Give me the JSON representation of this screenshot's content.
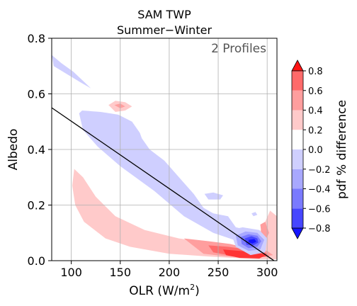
{
  "chart_data": {
    "type": "contour",
    "title": "SAM TWP",
    "subtitle": "Summer−Winter",
    "annotation": "2 Profiles",
    "xlabel_main": "OLR (W/m",
    "xlabel_sup": "2",
    "xlabel_close": ")",
    "ylabel": "Albedo",
    "xlim": [
      80,
      310
    ],
    "ylim": [
      0.0,
      0.8
    ],
    "x_ticks": [
      {
        "value": 100,
        "label": "100"
      },
      {
        "value": 150,
        "label": "150"
      },
      {
        "value": 200,
        "label": "200"
      },
      {
        "value": 250,
        "label": "250"
      },
      {
        "value": 300,
        "label": "300"
      }
    ],
    "y_ticks": [
      {
        "value": 0.0,
        "label": "0.0"
      },
      {
        "value": 0.2,
        "label": "0.2"
      },
      {
        "value": 0.4,
        "label": "0.4"
      },
      {
        "value": 0.6,
        "label": "0.6"
      },
      {
        "value": 0.8,
        "label": "0.8"
      }
    ],
    "grid": true,
    "reference_line": {
      "x": [
        80,
        307
      ],
      "y": [
        0.55,
        0.0
      ]
    },
    "colorbar": {
      "label": "pdf % difference",
      "levels": [
        -0.9,
        -0.8,
        -0.6,
        -0.4,
        -0.2,
        0.0,
        0.2,
        0.4,
        0.6,
        0.8,
        0.9
      ],
      "colors": [
        "#1414ff",
        "#4646ff",
        "#7a7aff",
        "#a8a8ff",
        "#cfcfff",
        "#ffffff",
        "#ffcaca",
        "#ff9e9e",
        "#ff6a6a",
        "#ff3434",
        "#ff1414"
      ],
      "tick_values": [
        -0.8,
        -0.6,
        -0.4,
        -0.2,
        0.0,
        0.2,
        0.4,
        0.6,
        0.8
      ],
      "tick_labels": [
        "−0.8",
        "−0.6",
        "−0.4",
        "−0.2",
        "0.0",
        "0.2",
        "0.4",
        "0.6",
        "0.8"
      ],
      "extend": "both"
    },
    "regions": [
      {
        "name": "pos-band-low",
        "sign": "positive",
        "level": 0.1,
        "color": "#ffcaca",
        "points": [
          [
            103,
            0.33
          ],
          [
            112,
            0.3
          ],
          [
            125,
            0.23
          ],
          [
            145,
            0.16
          ],
          [
            175,
            0.11
          ],
          [
            210,
            0.08
          ],
          [
            245,
            0.06
          ],
          [
            270,
            0.05
          ],
          [
            285,
            0.06
          ],
          [
            292,
            0.1
          ],
          [
            298,
            0.14
          ],
          [
            303,
            0.18
          ],
          [
            310,
            0.16
          ],
          [
            310,
            0.005
          ],
          [
            290,
            0.005
          ],
          [
            265,
            0.01
          ],
          [
            240,
            0.015
          ],
          [
            200,
            0.025
          ],
          [
            160,
            0.05
          ],
          [
            135,
            0.08
          ],
          [
            113,
            0.14
          ],
          [
            104,
            0.2
          ],
          [
            101,
            0.27
          ]
        ]
      },
      {
        "name": "pos-band-mid",
        "sign": "positive",
        "level": 0.3,
        "color": "#ff9e9e",
        "points": [
          [
            215,
            0.08
          ],
          [
            240,
            0.07
          ],
          [
            262,
            0.06
          ],
          [
            280,
            0.045
          ],
          [
            300,
            0.035
          ],
          [
            306,
            0.02
          ],
          [
            290,
            0.012
          ],
          [
            260,
            0.015
          ],
          [
            235,
            0.025
          ]
        ]
      },
      {
        "name": "pos-core-1",
        "sign": "positive",
        "level": 0.5,
        "color": "#ff6a6a",
        "points": [
          [
            240,
            0.055
          ],
          [
            260,
            0.05
          ],
          [
            280,
            0.04
          ],
          [
            298,
            0.03
          ],
          [
            302,
            0.015
          ],
          [
            285,
            0.01
          ],
          [
            260,
            0.02
          ],
          [
            245,
            0.03
          ]
        ]
      },
      {
        "name": "pos-core-2",
        "sign": "positive",
        "level": 0.7,
        "color": "#ff3434",
        "points": [
          [
            255,
            0.04
          ],
          [
            272,
            0.035
          ],
          [
            290,
            0.03
          ],
          [
            299,
            0.02
          ],
          [
            292,
            0.008
          ],
          [
            272,
            0.01
          ],
          [
            258,
            0.02
          ]
        ]
      },
      {
        "name": "pos-right-1",
        "sign": "positive",
        "level": 0.3,
        "color": "#ff9e9e",
        "points": [
          [
            293,
            0.13
          ],
          [
            298,
            0.14
          ],
          [
            302,
            0.1
          ],
          [
            299,
            0.08
          ],
          [
            294,
            0.1
          ]
        ]
      },
      {
        "name": "pos-blob-top",
        "sign": "positive",
        "level": 0.1,
        "color": "#ffcaca",
        "points": [
          [
            138,
            0.56
          ],
          [
            145,
            0.575
          ],
          [
            155,
            0.57
          ],
          [
            162,
            0.555
          ],
          [
            155,
            0.54
          ],
          [
            145,
            0.535
          ]
        ]
      },
      {
        "name": "pos-blob-top-core",
        "sign": "positive",
        "level": 0.3,
        "color": "#ff9e9e",
        "points": [
          [
            144,
            0.56
          ],
          [
            150,
            0.565
          ],
          [
            155,
            0.555
          ],
          [
            150,
            0.548
          ]
        ]
      },
      {
        "name": "neg-band-main",
        "sign": "negative",
        "level": -0.1,
        "color": "#cfcfff",
        "points": [
          [
            111,
            0.54
          ],
          [
            130,
            0.535
          ],
          [
            148,
            0.525
          ],
          [
            162,
            0.5
          ],
          [
            170,
            0.46
          ],
          [
            172,
            0.44
          ],
          [
            180,
            0.4
          ],
          [
            195,
            0.36
          ],
          [
            210,
            0.3
          ],
          [
            225,
            0.24
          ],
          [
            235,
            0.19
          ],
          [
            245,
            0.17
          ],
          [
            260,
            0.16
          ],
          [
            268,
            0.12
          ],
          [
            280,
            0.11
          ],
          [
            292,
            0.09
          ],
          [
            288,
            0.06
          ],
          [
            270,
            0.07
          ],
          [
            245,
            0.1
          ],
          [
            215,
            0.16
          ],
          [
            185,
            0.25
          ],
          [
            150,
            0.34
          ],
          [
            127,
            0.41
          ],
          [
            112,
            0.47
          ],
          [
            108,
            0.53
          ]
        ]
      },
      {
        "name": "neg-strip-top",
        "sign": "negative",
        "level": -0.1,
        "color": "#cfcfff",
        "points": [
          [
            80,
            0.74
          ],
          [
            90,
            0.71
          ],
          [
            102,
            0.68
          ],
          [
            114,
            0.64
          ],
          [
            120,
            0.62
          ],
          [
            110,
            0.64
          ],
          [
            96,
            0.67
          ],
          [
            82,
            0.7
          ]
        ]
      },
      {
        "name": "neg-blob-mid",
        "sign": "negative",
        "level": -0.1,
        "color": "#cfcfff",
        "points": [
          [
            236,
            0.24
          ],
          [
            245,
            0.245
          ],
          [
            255,
            0.235
          ],
          [
            252,
            0.22
          ],
          [
            240,
            0.22
          ]
        ]
      },
      {
        "name": "neg-right-1",
        "sign": "negative",
        "level": -0.1,
        "color": "#cfcfff",
        "points": [
          [
            262,
            0.11
          ],
          [
            275,
            0.12
          ],
          [
            292,
            0.11
          ],
          [
            300,
            0.08
          ],
          [
            298,
            0.03
          ],
          [
            283,
            0.02
          ],
          [
            268,
            0.05
          ]
        ]
      },
      {
        "name": "neg-right-2",
        "sign": "negative",
        "level": -0.3,
        "color": "#a8a8ff",
        "points": [
          [
            268,
            0.09
          ],
          [
            278,
            0.105
          ],
          [
            290,
            0.1
          ],
          [
            297,
            0.075
          ],
          [
            293,
            0.04
          ],
          [
            281,
            0.035
          ],
          [
            270,
            0.055
          ]
        ]
      },
      {
        "name": "neg-right-3",
        "sign": "negative",
        "level": -0.5,
        "color": "#7a7aff",
        "points": [
          [
            273,
            0.085
          ],
          [
            281,
            0.095
          ],
          [
            290,
            0.09
          ],
          [
            294,
            0.07
          ],
          [
            290,
            0.05
          ],
          [
            281,
            0.045
          ],
          [
            274,
            0.06
          ]
        ]
      },
      {
        "name": "neg-right-4",
        "sign": "negative",
        "level": -0.7,
        "color": "#4646ff",
        "points": [
          [
            277,
            0.08
          ],
          [
            284,
            0.088
          ],
          [
            290,
            0.08
          ],
          [
            291,
            0.065
          ],
          [
            286,
            0.055
          ],
          [
            279,
            0.057
          ]
        ]
      },
      {
        "name": "neg-right-5",
        "sign": "negative",
        "level": -0.85,
        "color": "#1414ff",
        "points": [
          [
            281,
            0.075
          ],
          [
            287,
            0.078
          ],
          [
            289,
            0.068
          ],
          [
            285,
            0.062
          ],
          [
            281,
            0.066
          ]
        ]
      },
      {
        "name": "neg-dot-right",
        "sign": "negative",
        "level": -0.1,
        "color": "#cfcfff",
        "points": [
          [
            284,
            0.17
          ],
          [
            288,
            0.175
          ],
          [
            290,
            0.165
          ],
          [
            286,
            0.16
          ]
        ]
      }
    ]
  }
}
